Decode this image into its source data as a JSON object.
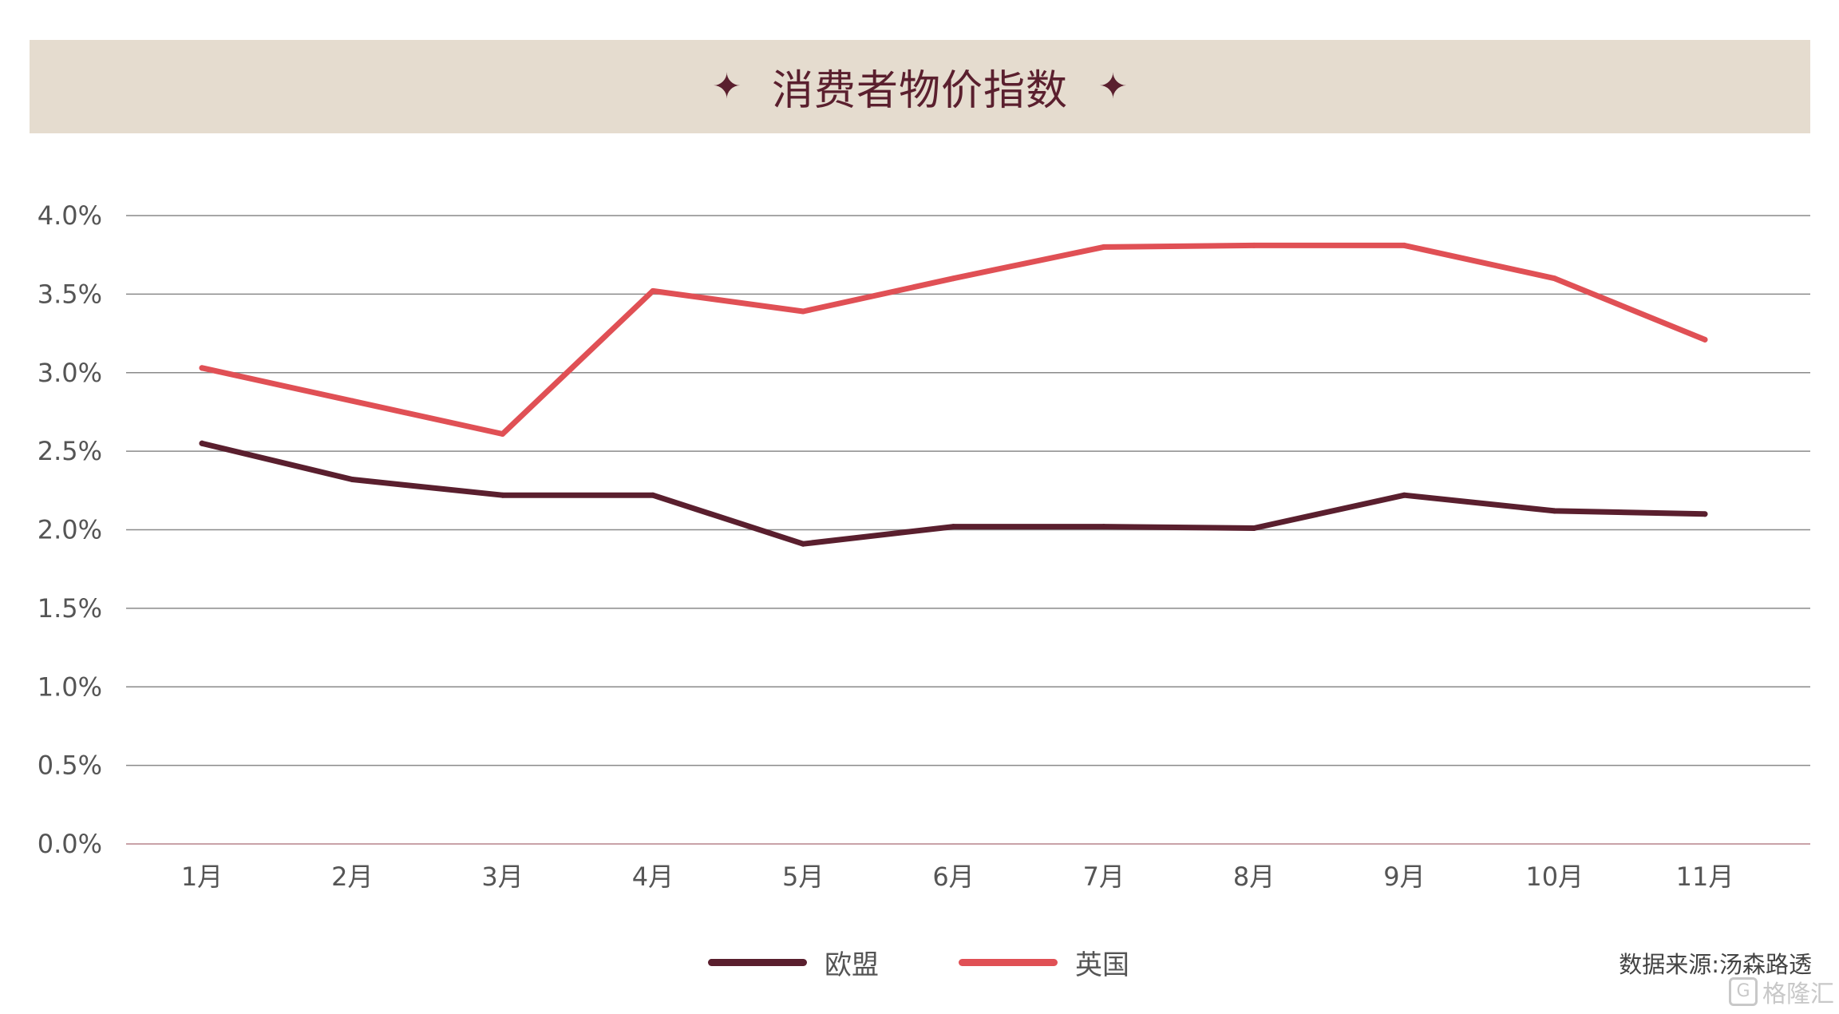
{
  "chart_data": {
    "type": "line",
    "title": "消费者物价指数",
    "title_decoration": "✦",
    "categories": [
      "1月",
      "2月",
      "3月",
      "4月",
      "5月",
      "6月",
      "7月",
      "8月",
      "9月",
      "10月",
      "11月"
    ],
    "series": [
      {
        "name": "欧盟",
        "color": "#5a1f2e",
        "values": [
          2.55,
          2.32,
          2.22,
          2.22,
          1.91,
          2.02,
          2.02,
          2.01,
          2.22,
          2.12,
          2.1
        ]
      },
      {
        "name": "英国",
        "color": "#e05055",
        "values": [
          3.03,
          2.82,
          2.61,
          3.52,
          3.39,
          3.6,
          3.8,
          3.81,
          3.81,
          3.6,
          3.21
        ]
      }
    ],
    "ylim": [
      0,
      4.0
    ],
    "yticks": [
      "0.0%",
      "0.5%",
      "1.0%",
      "1.5%",
      "2.0%",
      "2.5%",
      "3.0%",
      "3.5%",
      "4.0%"
    ],
    "ytick_values": [
      0,
      0.5,
      1.0,
      1.5,
      2.0,
      2.5,
      3.0,
      3.5,
      4.0
    ],
    "grid": true,
    "legend_position": "bottom-center",
    "source": "数据来源:汤森路透"
  },
  "colors": {
    "title_background": "#e5dccf",
    "title_text": "#5a1f2e",
    "gridline": "#8a8a8a",
    "baseline": "#c9a2a8",
    "tick_text": "#555555"
  },
  "watermark": {
    "text": "格隆汇",
    "icon": "G-logo-icon"
  }
}
